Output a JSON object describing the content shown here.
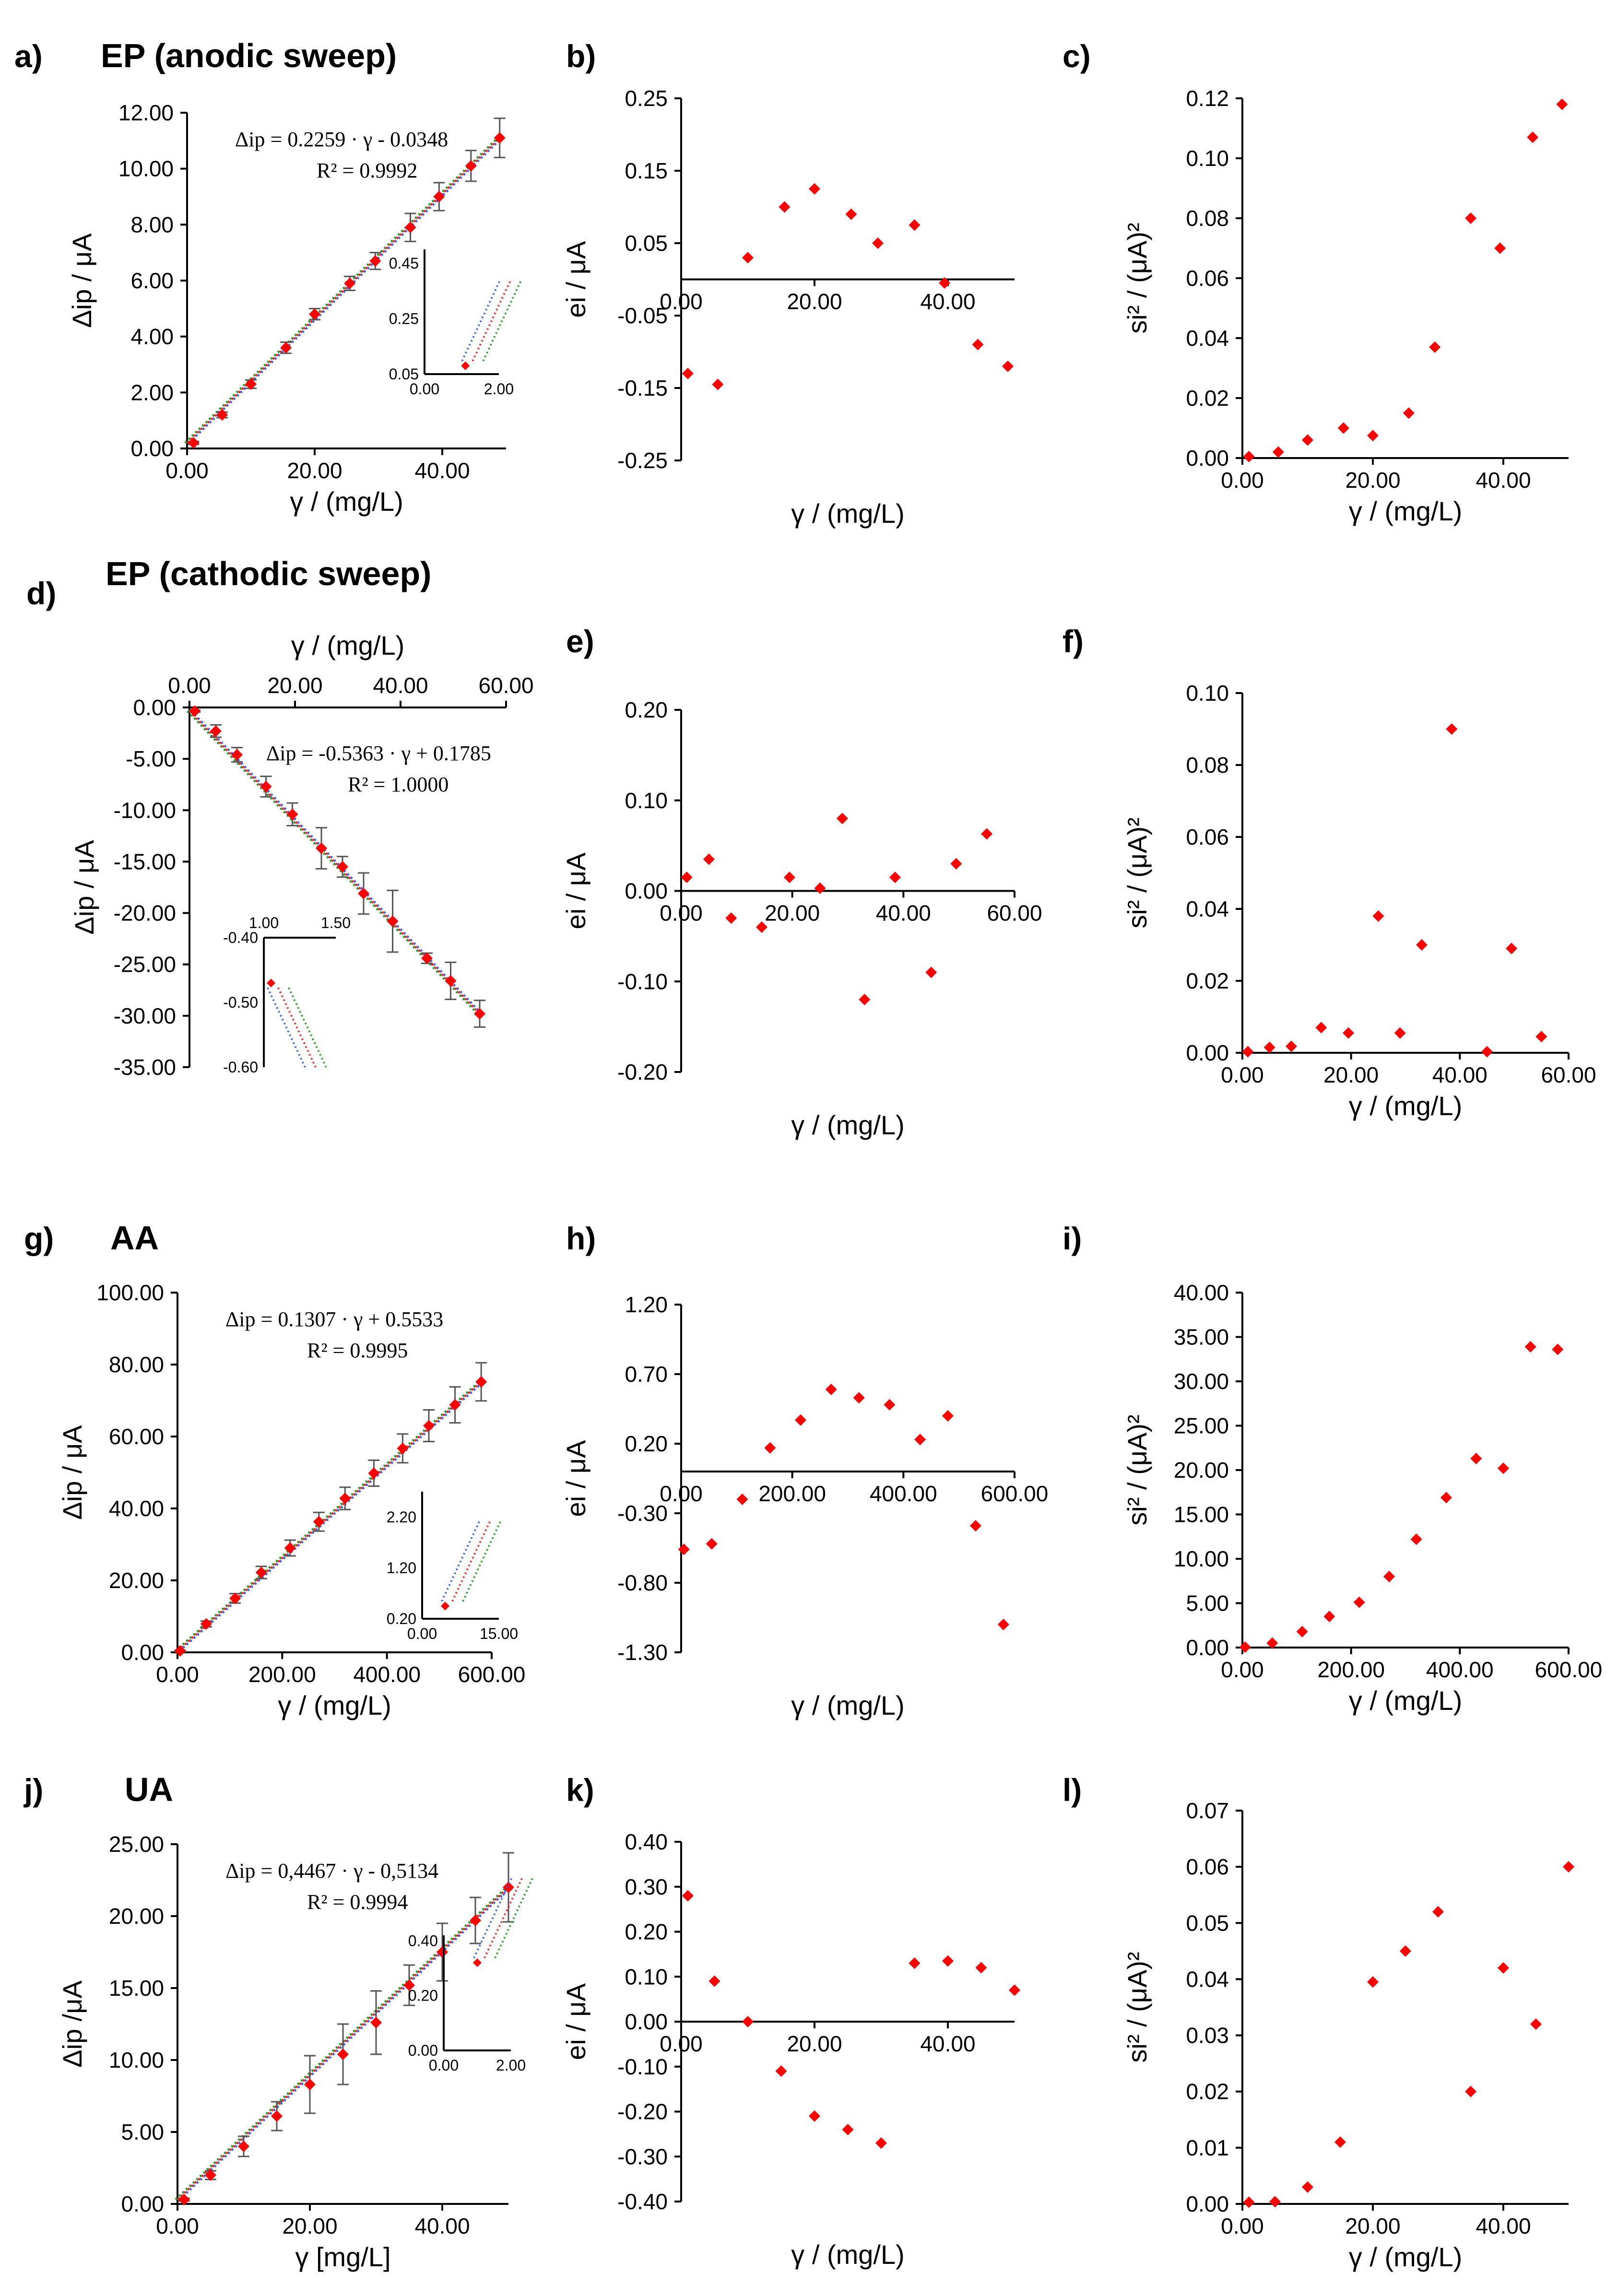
{
  "chart_data": [
    {
      "id": "a",
      "panel_label": "a)",
      "title": "EP (anodic sweep)",
      "type": "scatter",
      "fit": true,
      "xlabel": "γ / (mg/L)",
      "ylabel": "Δip / μA",
      "xlim": [
        0,
        50
      ],
      "ylim": [
        0,
        12
      ],
      "xticks": [
        "0.00",
        "20.00",
        "40.00"
      ],
      "yticks": [
        "0.00",
        "2.00",
        "4.00",
        "6.00",
        "8.00",
        "10.00",
        "12.00"
      ],
      "equation": "Δip = 0.2259 · γ - 0.0348",
      "r2": "R² = 0.9992",
      "x": [
        1,
        5.5,
        10,
        15.5,
        20,
        25.5,
        29.5,
        35,
        39.5,
        44.5,
        49
      ],
      "y": [
        0.2,
        1.2,
        2.3,
        3.6,
        4.8,
        5.9,
        6.7,
        7.9,
        9.0,
        10.1,
        11.1
      ],
      "err": [
        0.05,
        0.1,
        0.15,
        0.2,
        0.2,
        0.25,
        0.3,
        0.5,
        0.5,
        0.55,
        0.7
      ],
      "inset": {
        "xticks": [
          "0.00",
          "2.00"
        ],
        "yticks": [
          "0.05",
          "0.25",
          "0.45"
        ],
        "xlim": [
          0,
          2
        ],
        "ylim": [
          0.05,
          0.5
        ],
        "point": [
          1.1,
          0.08
        ]
      }
    },
    {
      "id": "b",
      "panel_label": "b)",
      "type": "scatter",
      "xlabel": "γ / (mg/L)",
      "ylabel": "ei / μA",
      "xlim": [
        0,
        50
      ],
      "ylim": [
        -0.25,
        0.25
      ],
      "xticks": [
        "0.00",
        "20.00",
        "40.00"
      ],
      "yticks": [
        "0.25",
        "0.15",
        "0.05",
        "-0.05",
        "-0.15",
        "-0.25"
      ],
      "x": [
        1,
        5.5,
        10,
        15.5,
        20,
        25.5,
        29.5,
        35,
        39.5,
        44.5,
        49
      ],
      "y": [
        -0.13,
        -0.145,
        0.03,
        0.1,
        0.125,
        0.09,
        0.05,
        0.075,
        -0.005,
        -0.09,
        -0.12
      ]
    },
    {
      "id": "c",
      "panel_label": "c)",
      "type": "scatter",
      "xlabel": "γ / (mg/L)",
      "ylabel": "si² / (μA)²",
      "xlim": [
        0,
        50
      ],
      "ylim": [
        0,
        0.12
      ],
      "xticks": [
        "0.00",
        "20.00",
        "40.00"
      ],
      "yticks": [
        "0.00",
        "0.02",
        "0.04",
        "0.06",
        "0.08",
        "0.10",
        "0.12"
      ],
      "x": [
        1,
        5.5,
        10,
        15.5,
        20,
        25.5,
        29.5,
        35,
        39.5,
        44.5,
        49
      ],
      "y": [
        0.0005,
        0.002,
        0.006,
        0.01,
        0.0075,
        0.015,
        0.037,
        0.08,
        0.07,
        0.107,
        0.118
      ]
    },
    {
      "id": "d",
      "panel_label": "d)",
      "title": "EP (cathodic sweep)",
      "type": "scatter",
      "fit": true,
      "x_on_top": true,
      "xlabel": "γ / (mg/L)",
      "ylabel": "Δip / μA",
      "xlim": [
        0,
        60
      ],
      "ylim": [
        -35,
        0
      ],
      "xticks": [
        "0.00",
        "20.00",
        "40.00",
        "60.00"
      ],
      "yticks": [
        "0.00",
        "-5.00",
        "-10.00",
        "-15.00",
        "-20.00",
        "-25.00",
        "-30.00",
        "-35.00"
      ],
      "equation": "Δip = -0.5363 · γ + 0.1785",
      "r2": "R² = 1.0000",
      "x": [
        1,
        5,
        9,
        14.5,
        19.5,
        25,
        29,
        33,
        38.5,
        45,
        49.5,
        55
      ],
      "y": [
        -0.35,
        -2.3,
        -4.6,
        -7.7,
        -10.4,
        -13.7,
        -15.5,
        -18.1,
        -20.8,
        -24.4,
        -26.6,
        -29.8
      ],
      "err": [
        0.1,
        0.6,
        0.7,
        1.0,
        1.1,
        2.0,
        1.0,
        2.0,
        3.0,
        0.5,
        1.8,
        1.3
      ],
      "inset": {
        "xticks": [
          "1.00",
          "1.50"
        ],
        "yticks": [
          "-0.40",
          "-0.50",
          "-0.60"
        ],
        "xlim": [
          1,
          1.5
        ],
        "ylim": [
          -0.6,
          -0.4
        ],
        "point": [
          1.05,
          -0.47
        ]
      }
    },
    {
      "id": "e",
      "panel_label": "e)",
      "type": "scatter",
      "xlabel": "γ / (mg/L)",
      "ylabel": "ei / μA",
      "xlim": [
        0,
        60
      ],
      "ylim": [
        -0.2,
        0.2
      ],
      "xticks": [
        "0.00",
        "20.00",
        "40.00",
        "60.00"
      ],
      "yticks": [
        "0.20",
        "0.10",
        "0.00",
        "-0.10",
        "-0.20"
      ],
      "x": [
        1,
        5,
        9,
        14.5,
        19.5,
        25,
        29,
        33,
        38.5,
        45,
        49.5,
        55
      ],
      "y": [
        0.015,
        0.035,
        -0.03,
        -0.04,
        0.015,
        0.003,
        0.08,
        -0.12,
        0.015,
        -0.09,
        0.03,
        0.063
      ]
    },
    {
      "id": "f",
      "panel_label": "f)",
      "type": "scatter",
      "xlabel": "γ / (mg/L)",
      "ylabel": "si² / (μA)²",
      "xlim": [
        0,
        60
      ],
      "ylim": [
        0,
        0.1
      ],
      "xticks": [
        "0.00",
        "20.00",
        "40.00",
        "60.00"
      ],
      "yticks": [
        "0.00",
        "0.02",
        "0.04",
        "0.06",
        "0.08",
        "0.10"
      ],
      "x": [
        1,
        5,
        9,
        14.5,
        19.5,
        25,
        29,
        33,
        38.5,
        45,
        49.5,
        55
      ],
      "y": [
        0.0003,
        0.0015,
        0.0018,
        0.007,
        0.0055,
        0.038,
        0.0055,
        0.03,
        0.09,
        0.0003,
        0.029,
        0.0045
      ]
    },
    {
      "id": "g",
      "panel_label": "g)",
      "title": "AA",
      "type": "scatter",
      "fit": true,
      "xlabel": "γ / (mg/L)",
      "ylabel": "Δip / μA",
      "xlim": [
        0,
        600
      ],
      "ylim": [
        0,
        100
      ],
      "xticks": [
        "0.00",
        "200.00",
        "400.00",
        "600.00"
      ],
      "yticks": [
        "0.00",
        "20.00",
        "40.00",
        "60.00",
        "80.00",
        "100.00"
      ],
      "equation": "Δip = 0.1307 · γ + 0.5533",
      "r2": "R² = 0.9995",
      "x": [
        5,
        55,
        110,
        160,
        215,
        270,
        320,
        375,
        430,
        480,
        530,
        580
      ],
      "y": [
        0.4,
        7.9,
        15.0,
        22.2,
        29.0,
        36.3,
        42.8,
        49.8,
        56.7,
        63.0,
        68.8,
        75.2
      ],
      "err": [
        0.2,
        0.8,
        1.3,
        1.7,
        2.2,
        2.6,
        3.1,
        3.6,
        4.0,
        4.4,
        5.0,
        5.3
      ],
      "inset": {
        "xticks": [
          "0.00",
          "15.00"
        ],
        "yticks": [
          "0.20",
          "1.20",
          "2.20"
        ],
        "xlim": [
          0,
          15
        ],
        "ylim": [
          0.2,
          2.7
        ],
        "point": [
          4.5,
          0.45
        ]
      }
    },
    {
      "id": "h",
      "panel_label": "h)",
      "type": "scatter",
      "xlabel": "γ / (mg/L)",
      "ylabel": "ei / μA",
      "xlim": [
        0,
        600
      ],
      "ylim": [
        -1.3,
        1.2
      ],
      "xticks": [
        "0.00",
        "200.00",
        "400.00",
        "600.00"
      ],
      "yticks": [
        "1.20",
        "0.70",
        "0.20",
        "-0.30",
        "-0.80",
        "-1.30"
      ],
      "x": [
        5,
        55,
        110,
        160,
        215,
        270,
        320,
        375,
        430,
        480,
        530,
        580
      ],
      "y": [
        -0.56,
        -0.52,
        -0.2,
        0.17,
        0.37,
        0.59,
        0.53,
        0.48,
        0.23,
        0.4,
        -0.39,
        -1.1
      ]
    },
    {
      "id": "i",
      "panel_label": "i)",
      "type": "scatter",
      "xlabel": "γ / (mg/L)",
      "ylabel": "si² / (μA)²",
      "xlim": [
        0,
        600
      ],
      "ylim": [
        0,
        40
      ],
      "xticks": [
        "0.00",
        "200.00",
        "400.00",
        "600.00"
      ],
      "yticks": [
        "0.00",
        "5.00",
        "10.00",
        "15.00",
        "20.00",
        "25.00",
        "30.00",
        "35.00",
        "40.00"
      ],
      "x": [
        5,
        55,
        110,
        160,
        215,
        270,
        320,
        375,
        430,
        480,
        530,
        580
      ],
      "y": [
        0.05,
        0.5,
        1.8,
        3.5,
        5.1,
        8.0,
        12.2,
        16.9,
        21.3,
        20.2,
        33.9,
        33.6
      ]
    },
    {
      "id": "j",
      "panel_label": "j)",
      "title": "UA",
      "type": "scatter",
      "fit": true,
      "xlabel": "γ [mg/L]",
      "ylabel": "Δip /μA",
      "xlim": [
        0,
        50
      ],
      "ylim": [
        0,
        25
      ],
      "xticks": [
        "0.00",
        "20.00",
        "40.00"
      ],
      "yticks": [
        "0.00",
        "5.00",
        "10.00",
        "15.00",
        "20.00",
        "25.00"
      ],
      "equation": "Δip = 0,4467 · γ - 0,5134",
      "r2": "R² = 0.9994",
      "x": [
        1,
        5,
        10,
        15,
        20,
        25,
        30,
        35,
        40,
        45,
        50
      ],
      "y": [
        0.3,
        2.0,
        4.0,
        6.1,
        8.3,
        10.4,
        12.6,
        15.2,
        17.5,
        19.7,
        22.0
      ],
      "err": [
        0.1,
        0.3,
        0.7,
        1.0,
        2.0,
        2.1,
        2.2,
        1.4,
        2.0,
        1.6,
        2.4
      ],
      "inset": {
        "xticks": [
          "0.00",
          "2.00"
        ],
        "yticks": [
          "0.00",
          "0.20",
          "0.40"
        ],
        "xlim": [
          0,
          2
        ],
        "ylim": [
          0,
          0.42
        ],
        "point": [
          1.0,
          0.32
        ]
      }
    },
    {
      "id": "k",
      "panel_label": "k)",
      "type": "scatter",
      "xlabel": "γ / (mg/L)",
      "ylabel": "ei / μA",
      "xlim": [
        0,
        50
      ],
      "ylim": [
        -0.4,
        0.4
      ],
      "xticks": [
        "0.00",
        "20.00",
        "40.00"
      ],
      "yticks": [
        "0.40",
        "0.30",
        "0.20",
        "0.10",
        "0.00",
        "-0.10",
        "-0.20",
        "-0.30",
        "-0.40"
      ],
      "x": [
        1,
        5,
        10,
        15,
        20,
        25,
        30,
        35,
        40,
        45,
        50
      ],
      "y": [
        0.28,
        0.09,
        0.0,
        -0.11,
        -0.21,
        -0.24,
        -0.27,
        0.13,
        0.135,
        0.12,
        0.07
      ]
    },
    {
      "id": "l",
      "panel_label": "l)",
      "type": "scatter",
      "xlabel": "γ / (mg/L)",
      "ylabel": "si² / (μA)²",
      "xlim": [
        0,
        50
      ],
      "ylim": [
        0,
        0.07
      ],
      "xticks": [
        "0.00",
        "20.00",
        "40.00"
      ],
      "yticks": [
        "0.00",
        "0.01",
        "0.02",
        "0.03",
        "0.04",
        "0.05",
        "0.06",
        "0.07"
      ],
      "x": [
        1,
        5,
        10,
        15,
        20,
        25,
        30,
        35,
        40,
        45,
        50
      ],
      "y": [
        0.0003,
        0.0004,
        0.003,
        0.011,
        0.0395,
        0.045,
        0.052,
        0.02,
        0.042,
        0.032,
        0.06
      ]
    }
  ]
}
